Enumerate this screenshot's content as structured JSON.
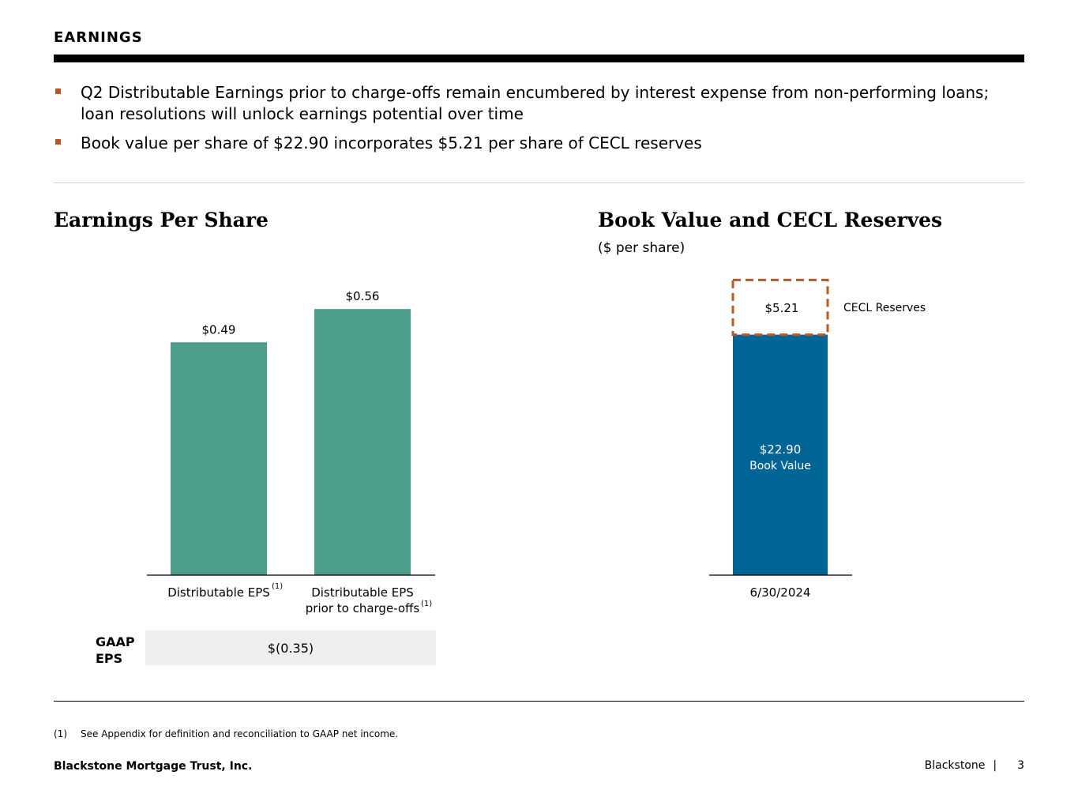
{
  "header": {
    "section": "EARNINGS"
  },
  "bullets": [
    "Q2 Distributable Earnings prior to charge-offs remain encumbered by interest expense from non-performing loans; loan resolutions will unlock earnings potential over time",
    "Book value per share of $22.90 incorporates $5.21 per share of CECL reserves"
  ],
  "colors": {
    "eps_bar": "#4c9e8a",
    "book_value": "#006595",
    "cecl": "#b5582a",
    "bullet": "#b5582a"
  },
  "eps": {
    "title": "Earnings Per Share",
    "gaap_label_1": "GAAP",
    "gaap_label_2": "EPS",
    "gaap_value": "$(0.35)"
  },
  "book": {
    "title": "Book Value and CECL Reserves",
    "subtitle": "($ per share)"
  },
  "chart_data": [
    {
      "type": "bar",
      "title": "Earnings Per Share",
      "categories": [
        {
          "line1": "Distributable EPS",
          "line2": "",
          "note": "(1)"
        },
        {
          "line1": "Distributable EPS",
          "line2": "prior to charge-offs",
          "note": "(1)"
        }
      ],
      "values": [
        0.49,
        0.56
      ],
      "value_labels": [
        "$0.49",
        "$0.56"
      ],
      "ylim": [
        0,
        0.66
      ]
    },
    {
      "type": "bar",
      "stacked": true,
      "title": "Book Value and CECL Reserves",
      "subtitle": "($ per share)",
      "categories": [
        "6/30/2024"
      ],
      "series": [
        {
          "name": "Book Value",
          "values": [
            22.9
          ],
          "label": "$22.90",
          "sublabel": "Book Value"
        },
        {
          "name": "CECL Reserves",
          "values": [
            5.21
          ],
          "label": "$5.21",
          "legend": "CECL Reserves"
        }
      ],
      "ylim": [
        0,
        32.5
      ]
    }
  ],
  "footer": {
    "footnote_num": "(1)",
    "footnote_text": "See Appendix for definition and reconciliation to GAAP net income.",
    "company": "Blackstone Mortgage Trust, Inc.",
    "brand": "Blackstone",
    "separator": "|",
    "page": "3"
  }
}
